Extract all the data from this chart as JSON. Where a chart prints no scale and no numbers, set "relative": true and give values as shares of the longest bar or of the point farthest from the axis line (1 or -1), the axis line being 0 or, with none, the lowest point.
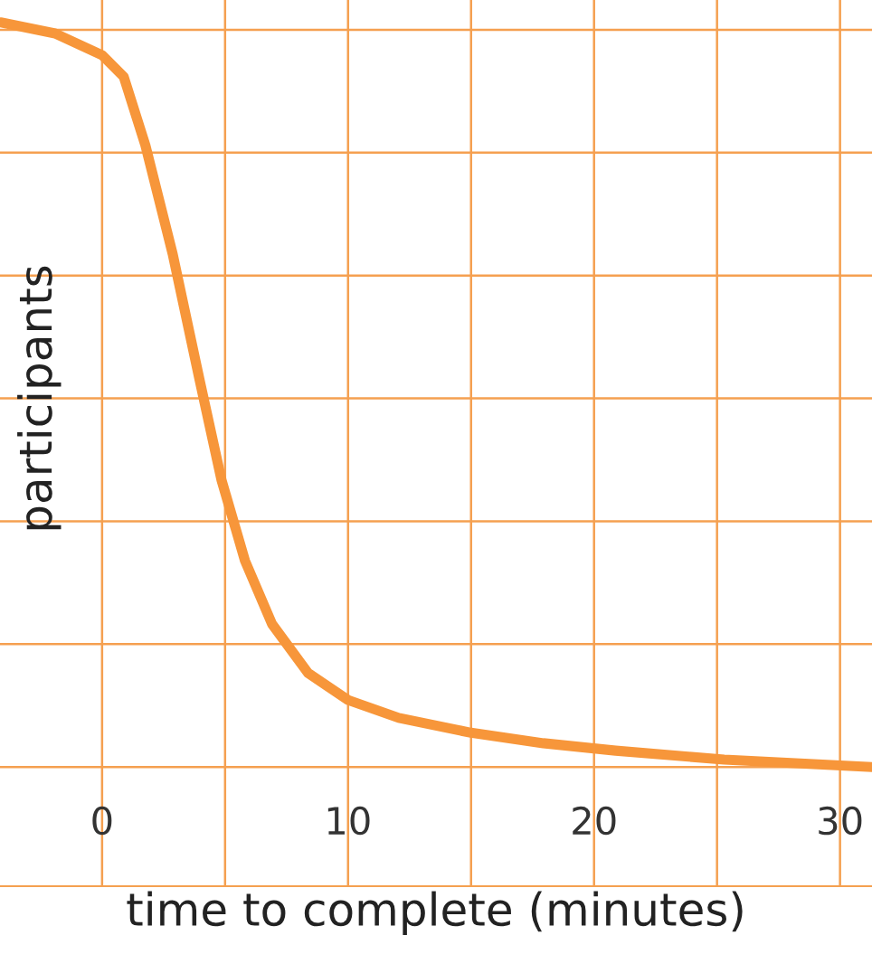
{
  "chart_data": {
    "type": "line",
    "relative": true,
    "xlabel": "time to complete (minutes)",
    "ylabel": "participants",
    "xlim": [
      -4.15,
      31.3
    ],
    "xticks": [
      0,
      {
        "value": 5,
        "label": null
      },
      10,
      {
        "value": 15,
        "label": null
      },
      20,
      {
        "value": 25,
        "label": null
      },
      30
    ],
    "grid": true,
    "marker": "none",
    "line_style": "solid",
    "series": [
      {
        "color": "#f7963a",
        "x": [
          -4.12,
          -1.91,
          0,
          0.88,
          1.76,
          2.87,
          3.97,
          4.85,
          5.81,
          6.91,
          8.38,
          10.0,
          12.06,
          15.0,
          17.94,
          20.88,
          25.29,
          31.3
        ],
        "values": [
          1.0,
          0.985,
          0.956,
          0.927,
          0.835,
          0.689,
          0.519,
          0.386,
          0.277,
          0.192,
          0.126,
          0.09,
          0.066,
          0.046,
          0.032,
          0.022,
          0.01,
          0.0
        ]
      }
    ]
  }
}
